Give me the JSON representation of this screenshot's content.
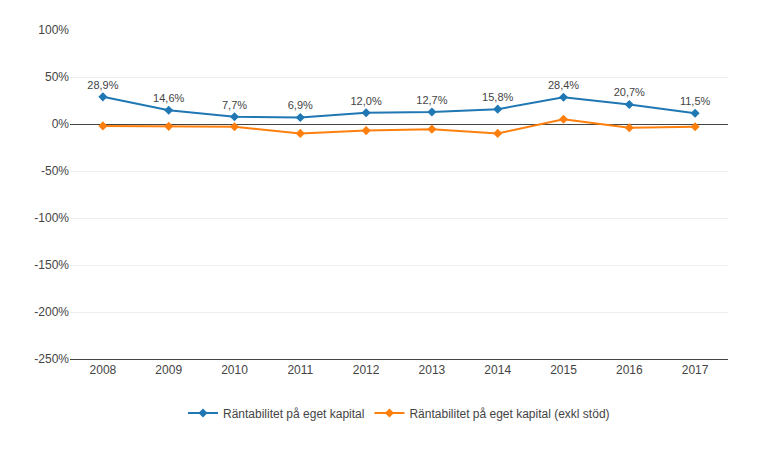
{
  "chart_data": {
    "type": "line",
    "x": [
      2008,
      2009,
      2010,
      2011,
      2012,
      2013,
      2014,
      2015,
      2016,
      2017
    ],
    "series": [
      {
        "name": "Räntabilitet på eget kapital",
        "marker": "diamond",
        "values": [
          0.289,
          0.146,
          0.077,
          0.069,
          0.12,
          0.127,
          0.158,
          0.284,
          0.207,
          0.115
        ],
        "value_labels": [
          "28,9%",
          "14,6%",
          "7,7%",
          "6,9%",
          "12,0%",
          "12,7%",
          "15,8%",
          "28,4%",
          "20,7%",
          "11,5%"
        ]
      },
      {
        "name": "Räntabilitet på eget kapital (exkl stöd)",
        "marker": "diamond",
        "values": [
          -0.02,
          -0.025,
          -0.03,
          -0.1,
          -0.07,
          -0.055,
          -0.1,
          0.05,
          -0.04,
          -0.03
        ]
      }
    ],
    "xlim": [
      2007.5,
      2017.5
    ],
    "xticks": [
      2008,
      2009,
      2010,
      2011,
      2012,
      2013,
      2014,
      2015,
      2016,
      2017
    ],
    "ylim": [
      -2.5,
      1.0
    ],
    "yticks": [
      {
        "value": 1.0,
        "label": "100%"
      },
      {
        "value": 0.5,
        "label": "50%"
      },
      {
        "value": 0.0,
        "label": "0%"
      },
      {
        "value": -0.5,
        "label": "-50%"
      },
      {
        "value": -1.0,
        "label": "-100%"
      },
      {
        "value": -1.5,
        "label": "-150%"
      },
      {
        "value": -2.0,
        "label": "-200%"
      },
      {
        "value": -2.5,
        "label": "-250%"
      }
    ],
    "grid": true,
    "legend": "bottom",
    "data_labels": true
  }
}
